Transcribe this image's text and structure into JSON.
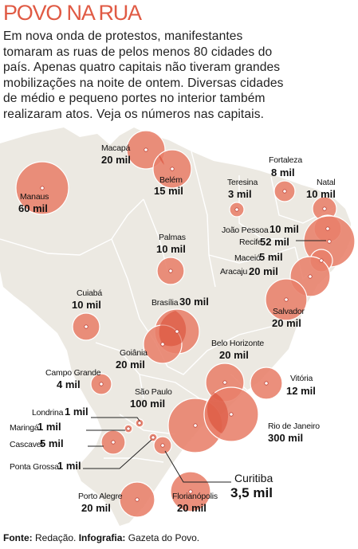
{
  "title": "POVO NA RUA",
  "intro_lines": [
    "Em nova onda de protestos, manifestantes",
    "tomaram as ruas de pelos menos 80 cidades do",
    "país. Apenas quatro capitais não tiveram grandes",
    "mobilizações na noite de ontem. Diversas cidades",
    "de médio e pequeno portes no interior também",
    "realizaram atos. Veja os números nas capitais."
  ],
  "colors": {
    "title": "#e05a44",
    "bubble": "#e8806a",
    "bubble_overlap": "#d94a33",
    "land": "#ece9e2",
    "border": "#ffffff"
  },
  "cities": [
    {
      "id": "macapa",
      "name": "Macapá",
      "count": "20 mil"
    },
    {
      "id": "belem",
      "name": "Belém",
      "count": "15 mil"
    },
    {
      "id": "manaus",
      "name": "Manaus",
      "count": "60 mil"
    },
    {
      "id": "fortaleza",
      "name": "Fortaleza",
      "count": "8 mil"
    },
    {
      "id": "teresina",
      "name": "Teresina",
      "count": "3 mil"
    },
    {
      "id": "natal",
      "name": "Natal",
      "count": "10 mil"
    },
    {
      "id": "joao_pessoa",
      "name": "João Pessoa",
      "count": "10 mil"
    },
    {
      "id": "recife",
      "name": "Recife",
      "count": "52 mil"
    },
    {
      "id": "maceio",
      "name": "Maceió",
      "count": "5 mil"
    },
    {
      "id": "aracaju",
      "name": "Aracaju",
      "count": "20 mil"
    },
    {
      "id": "palmas",
      "name": "Palmas",
      "count": "10 mil"
    },
    {
      "id": "salvador",
      "name": "Salvador",
      "count": "20 mil"
    },
    {
      "id": "cuiaba",
      "name": "Cuiabá",
      "count": "10 mil"
    },
    {
      "id": "brasilia",
      "name": "Brasília",
      "count": "30 mil"
    },
    {
      "id": "goiania",
      "name": "Goiânia",
      "count": "20 mil"
    },
    {
      "id": "belo_horizonte",
      "name": "Belo Horizonte",
      "count": "20 mil"
    },
    {
      "id": "vitoria",
      "name": "Vitória",
      "count": "12 mil"
    },
    {
      "id": "campo_grande",
      "name": "Campo Grande",
      "count": "4 mil"
    },
    {
      "id": "sao_paulo",
      "name": "São Paulo",
      "count": "100 mil"
    },
    {
      "id": "rio_de_janeiro",
      "name": "Rio de Janeiro",
      "count": "300 mil"
    },
    {
      "id": "londrina",
      "name": "Londrina",
      "count": "1 mil"
    },
    {
      "id": "maringa",
      "name": "Maringá",
      "count": "1 mil"
    },
    {
      "id": "cascavel",
      "name": "Cascavel",
      "count": "5 mil"
    },
    {
      "id": "ponta_grossa",
      "name": "Ponta Grossa",
      "count": "1 mil"
    },
    {
      "id": "curitiba",
      "name": "Curitiba",
      "count": "3,5 mil"
    },
    {
      "id": "porto_alegre",
      "name": "Porto Alegre",
      "count": "20 mil"
    },
    {
      "id": "florianopolis",
      "name": "Florianópolis",
      "count": "20 mil"
    }
  ],
  "footer": {
    "source_label": "Fonte:",
    "source": "Redação.",
    "infographic_label": "Infografia:",
    "infographic": "Gazeta do Povo."
  }
}
